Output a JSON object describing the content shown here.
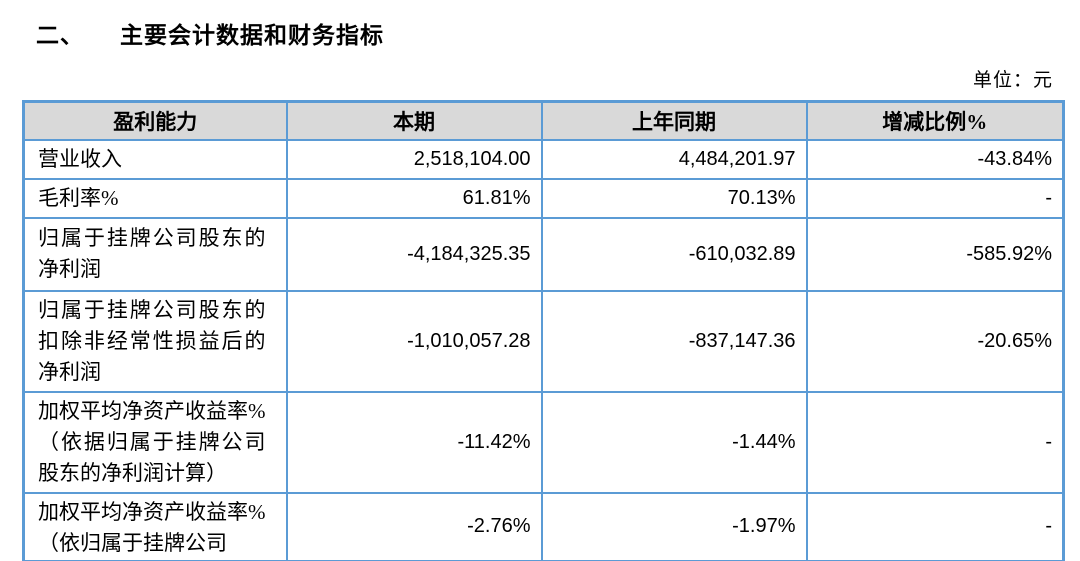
{
  "page": {
    "section_number": "二、",
    "section_title": "主要会计数据和财务指标",
    "unit_label": "单位：元"
  },
  "table": {
    "headers": [
      "盈利能力",
      "本期",
      "上年同期",
      "增减比例%"
    ],
    "rows": [
      {
        "label": "营业收入",
        "current": "2,518,104.00",
        "prior": "4,484,201.97",
        "change": "-43.84%"
      },
      {
        "label": "毛利率%",
        "current": "61.81%",
        "prior": "70.13%",
        "change": "-"
      },
      {
        "label": "归属于挂牌公司股东的净利润",
        "current": "-4,184,325.35",
        "prior": "-610,032.89",
        "change": "-585.92%"
      },
      {
        "label": "归属于挂牌公司股东的扣除非经常性损益后的净利润",
        "current": "-1,010,057.28",
        "prior": "-837,147.36",
        "change": "-20.65%"
      },
      {
        "label": "加权平均净资产收益率%（依据归属于挂牌公司股东的净利润计算）",
        "current": "-11.42%",
        "prior": "-1.44%",
        "change": "-"
      },
      {
        "label": "加权平均净资产收益率%（依归属于挂牌公司",
        "current": "-2.76%",
        "prior": "-1.97%",
        "change": "-"
      }
    ]
  },
  "colors": {
    "table_border": "#5B9BD5",
    "header_bg": "#D9D9D9",
    "text": "#000000"
  }
}
